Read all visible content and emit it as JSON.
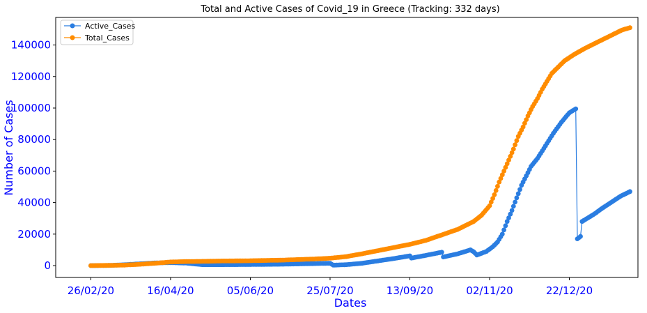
{
  "chart_data": {
    "type": "line",
    "title": "Total and Active Cases of Covid_19 in Greece (Tracking: 332 days)",
    "xlabel": "Dates",
    "ylabel": "Number of Cases",
    "x_tick_labels": [
      "26/02/20",
      "16/04/20",
      "05/06/20",
      "25/07/20",
      "13/09/20",
      "02/11/20",
      "22/12/20"
    ],
    "x_tick_days": [
      0,
      50,
      100,
      150,
      200,
      250,
      300
    ],
    "xlim": [
      -22,
      343
    ],
    "ylim": [
      -7500,
      157500
    ],
    "y_ticks": [
      0,
      20000,
      40000,
      60000,
      80000,
      100000,
      120000,
      140000
    ],
    "x_days_total": 332,
    "legend_position": "top-left",
    "grid": false,
    "series": [
      {
        "name": "Active_Cases",
        "color": "#2a7de1",
        "points": [
          [
            0,
            0
          ],
          [
            10,
            90
          ],
          [
            20,
            500
          ],
          [
            30,
            1100
          ],
          [
            40,
            1700
          ],
          [
            50,
            1900
          ],
          [
            60,
            1600
          ],
          [
            70,
            600
          ],
          [
            80,
            600
          ],
          [
            100,
            700
          ],
          [
            120,
            900
          ],
          [
            140,
            1300
          ],
          [
            150,
            1500
          ],
          [
            152,
            300
          ],
          [
            160,
            600
          ],
          [
            170,
            1500
          ],
          [
            180,
            3000
          ],
          [
            190,
            4500
          ],
          [
            200,
            6200
          ],
          [
            201,
            4800
          ],
          [
            210,
            6500
          ],
          [
            220,
            8500
          ],
          [
            221,
            5500
          ],
          [
            230,
            7500
          ],
          [
            238,
            10000
          ],
          [
            240,
            8800
          ],
          [
            242,
            6700
          ],
          [
            248,
            9000
          ],
          [
            252,
            12000
          ],
          [
            255,
            15000
          ],
          [
            258,
            20000
          ],
          [
            261,
            28000
          ],
          [
            264,
            35000
          ],
          [
            267,
            43000
          ],
          [
            270,
            51000
          ],
          [
            273,
            57000
          ],
          [
            276,
            63000
          ],
          [
            280,
            68000
          ],
          [
            285,
            76000
          ],
          [
            290,
            84000
          ],
          [
            295,
            91000
          ],
          [
            300,
            97000
          ],
          [
            304,
            99500
          ],
          [
            305,
            17000
          ],
          [
            307,
            18500
          ],
          [
            308,
            28000
          ],
          [
            312,
            30500
          ],
          [
            316,
            33000
          ],
          [
            320,
            36000
          ],
          [
            326,
            40000
          ],
          [
            332,
            44000
          ],
          [
            336,
            46000
          ],
          [
            338,
            47000
          ]
        ]
      },
      {
        "name": "Total_Cases",
        "color": "#ff8c00",
        "points": [
          [
            0,
            0
          ],
          [
            20,
            300
          ],
          [
            30,
            800
          ],
          [
            40,
            1500
          ],
          [
            50,
            2300
          ],
          [
            60,
            2600
          ],
          [
            70,
            2700
          ],
          [
            80,
            2900
          ],
          [
            100,
            3100
          ],
          [
            120,
            3500
          ],
          [
            140,
            4200
          ],
          [
            150,
            4700
          ],
          [
            160,
            5700
          ],
          [
            170,
            7500
          ],
          [
            180,
            9500
          ],
          [
            190,
            11500
          ],
          [
            200,
            13500
          ],
          [
            210,
            16000
          ],
          [
            220,
            19500
          ],
          [
            230,
            23000
          ],
          [
            240,
            28000
          ],
          [
            245,
            32000
          ],
          [
            250,
            38000
          ],
          [
            253,
            45000
          ],
          [
            256,
            53000
          ],
          [
            259,
            60000
          ],
          [
            262,
            67000
          ],
          [
            265,
            74000
          ],
          [
            268,
            82000
          ],
          [
            271,
            88000
          ],
          [
            274,
            95000
          ],
          [
            277,
            101000
          ],
          [
            280,
            106000
          ],
          [
            283,
            112000
          ],
          [
            286,
            117000
          ],
          [
            289,
            122000
          ],
          [
            292,
            125000
          ],
          [
            297,
            130000
          ],
          [
            303,
            134000
          ],
          [
            310,
            138000
          ],
          [
            316,
            141000
          ],
          [
            322,
            144000
          ],
          [
            328,
            147000
          ],
          [
            333,
            149500
          ],
          [
            338,
            151000
          ]
        ]
      }
    ]
  }
}
